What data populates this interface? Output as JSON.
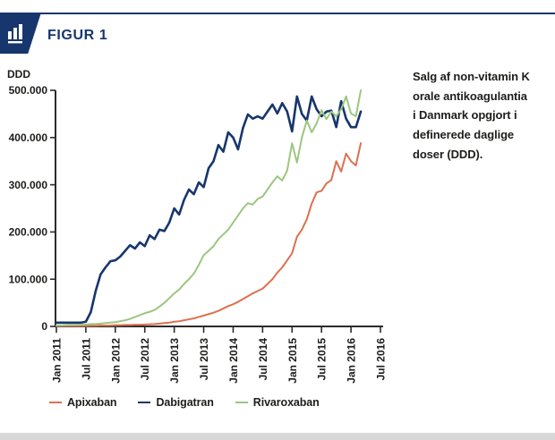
{
  "page": {
    "accent_navy": "#16366d",
    "text_dark": "#1d1d1b",
    "bottom_strip_color": "#d8d8d8"
  },
  "header": {
    "figure_label": "FIGUR 1",
    "icon": "bar-chart-icon"
  },
  "caption": {
    "lines": [
      "Salg af non-vitamin K",
      "orale antikoagulantia",
      "i Danmark opgjort i",
      "definerede daglige",
      "doser (DDD)."
    ]
  },
  "chart_data": {
    "type": "line",
    "ylabel": "DDD",
    "ylim": [
      0,
      500000
    ],
    "grid": false,
    "legend_position": "bottom",
    "axis_color": "#2b2b2b",
    "y_ticks": [
      0,
      100000,
      200000,
      300000,
      400000,
      500000
    ],
    "y_tick_labels": [
      "0",
      "100.000",
      "200.000",
      "300.000",
      "400.000",
      "500.000"
    ],
    "x_tick_labels": [
      "Jan 2011",
      "Jul 2011",
      "Jan 2012",
      "Jul 2012",
      "Jan 2013",
      "Jul 2013",
      "Jan 2014",
      "Jul 2014",
      "Jan 2015",
      "Jul 2015",
      "Jan 2016",
      "Jul 2016"
    ],
    "x_months_per_tick": 6,
    "x_axis_total_months": 66,
    "x_start": "Jan 2011",
    "data_interval": "monthly",
    "series": [
      {
        "name": "Apixaban",
        "color": "#dd7050",
        "stroke_width": 2,
        "values": [
          1000,
          1000,
          1000,
          1000,
          1000,
          1000,
          1000,
          1500,
          1500,
          2000,
          2000,
          2000,
          2500,
          2500,
          3000,
          3000,
          3500,
          3500,
          4000,
          4500,
          5000,
          6000,
          7000,
          8000,
          10000,
          11000,
          13000,
          15000,
          17000,
          20000,
          23000,
          26000,
          29000,
          33000,
          38000,
          43000,
          47000,
          52000,
          58000,
          64000,
          70000,
          75000,
          80000,
          90000,
          100000,
          114000,
          125000,
          140000,
          155000,
          190000,
          205000,
          227000,
          260000,
          284000,
          287000,
          303000,
          310000,
          350000,
          328000,
          366000,
          350000,
          341000,
          388000
        ]
      },
      {
        "name": "Dabigatran",
        "color": "#16366d",
        "stroke_width": 2.6,
        "values": [
          8000,
          8000,
          8000,
          8000,
          8000,
          8000,
          10000,
          30000,
          75000,
          110000,
          125000,
          138000,
          140000,
          148000,
          160000,
          172000,
          165000,
          178000,
          170000,
          193000,
          185000,
          205000,
          202000,
          220000,
          250000,
          237000,
          268000,
          290000,
          280000,
          305000,
          295000,
          335000,
          350000,
          384000,
          370000,
          411000,
          400000,
          375000,
          420000,
          449000,
          440000,
          445000,
          440000,
          455000,
          470000,
          451000,
          473000,
          455000,
          413000,
          487000,
          450000,
          436000,
          487000,
          460000,
          445000,
          455000,
          457000,
          422000,
          477000,
          440000,
          422000,
          422000,
          455000
        ]
      },
      {
        "name": "Rivaroxaban",
        "color": "#9cc680",
        "stroke_width": 2,
        "values": [
          2000,
          2000,
          2500,
          3000,
          3000,
          3500,
          4000,
          5000,
          5000,
          6000,
          7000,
          8000,
          9000,
          11000,
          13000,
          16000,
          20000,
          24000,
          28000,
          31000,
          35000,
          42000,
          50000,
          60000,
          70000,
          78000,
          90000,
          100000,
          112000,
          130000,
          151000,
          160000,
          170000,
          185000,
          195000,
          205000,
          220000,
          235000,
          250000,
          261000,
          258000,
          270000,
          275000,
          290000,
          305000,
          318000,
          309000,
          330000,
          388000,
          347000,
          400000,
          436000,
          411000,
          430000,
          458000,
          439000,
          455000,
          445000,
          460000,
          487000,
          451000,
          445000,
          500000
        ]
      }
    ]
  }
}
